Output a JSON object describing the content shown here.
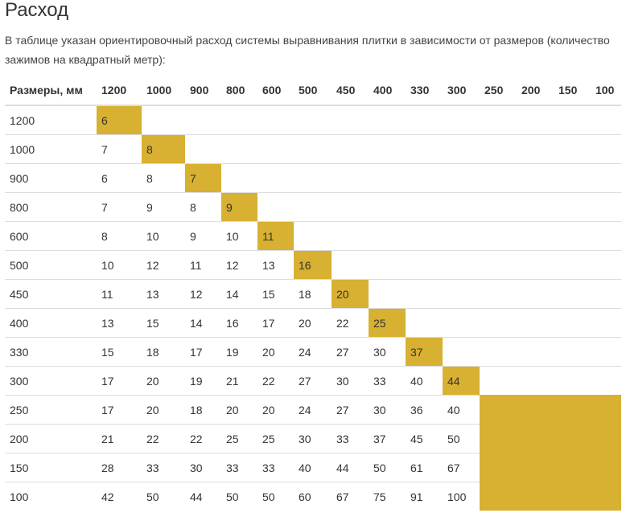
{
  "heading": "Расход",
  "intro": "В таблице указан ориентировочный расход системы выравнивания плитки в зависимости от размеров (количество зажимов на квадратный метр):",
  "colors": {
    "highlight": "#d8b032",
    "border": "#dddddd",
    "text": "#333333"
  },
  "table": {
    "corner_label": "Размеры, мм",
    "columns": [
      "1200",
      "1000",
      "900",
      "800",
      "600",
      "500",
      "450",
      "400",
      "330",
      "300",
      "250",
      "200",
      "150",
      "100"
    ],
    "rows": [
      {
        "label": "1200",
        "cells": [
          "6"
        ]
      },
      {
        "label": "1000",
        "cells": [
          "7",
          "8"
        ]
      },
      {
        "label": "900",
        "cells": [
          "6",
          "8",
          "7"
        ]
      },
      {
        "label": "800",
        "cells": [
          "7",
          "9",
          "8",
          "9"
        ]
      },
      {
        "label": "600",
        "cells": [
          "8",
          "10",
          "9",
          "10",
          "11"
        ]
      },
      {
        "label": "500",
        "cells": [
          "10",
          "12",
          "11",
          "12",
          "13",
          "16"
        ]
      },
      {
        "label": "450",
        "cells": [
          "11",
          "13",
          "12",
          "14",
          "15",
          "18",
          "20"
        ]
      },
      {
        "label": "400",
        "cells": [
          "13",
          "15",
          "14",
          "16",
          "17",
          "20",
          "22",
          "25"
        ]
      },
      {
        "label": "330",
        "cells": [
          "15",
          "18",
          "17",
          "19",
          "20",
          "24",
          "27",
          "30",
          "37"
        ]
      },
      {
        "label": "300",
        "cells": [
          "17",
          "20",
          "19",
          "21",
          "22",
          "27",
          "30",
          "33",
          "40",
          "44"
        ]
      },
      {
        "label": "250",
        "cells": [
          "17",
          "20",
          "18",
          "20",
          "20",
          "24",
          "27",
          "30",
          "36",
          "40"
        ]
      },
      {
        "label": "200",
        "cells": [
          "21",
          "22",
          "22",
          "25",
          "25",
          "30",
          "33",
          "37",
          "45",
          "50"
        ]
      },
      {
        "label": "150",
        "cells": [
          "28",
          "33",
          "30",
          "33",
          "33",
          "40",
          "44",
          "50",
          "61",
          "67"
        ]
      },
      {
        "label": "100",
        "cells": [
          "42",
          "50",
          "44",
          "50",
          "50",
          "60",
          "67",
          "75",
          "91",
          "100"
        ]
      }
    ]
  }
}
